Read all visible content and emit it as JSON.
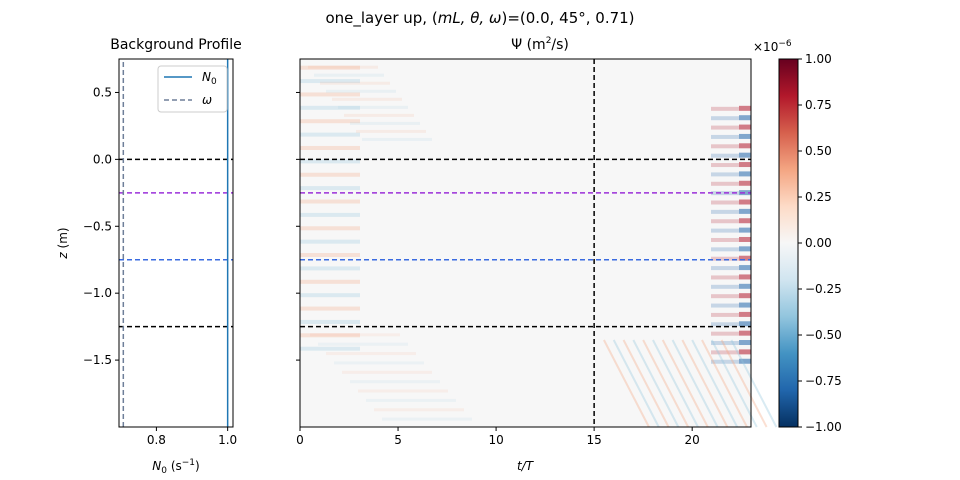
{
  "figure": {
    "suptitle_prefix": "one_layer up, (",
    "suptitle_vars": "mL, θ, ω",
    "suptitle_suffix": ")=(0.0, 45°, 0.71)"
  },
  "chart_data": [
    {
      "type": "line",
      "title": "Background Profile",
      "xlabel_main": "N",
      "xlabel_sub": "0",
      "xlabel_units": " (s",
      "xlabel_exp": "−1",
      "xlabel_close": ")",
      "ylabel_var": "z",
      "ylabel_units": " (m)",
      "xlim": [
        0.695,
        1.015
      ],
      "ylim": [
        -2.0,
        0.75
      ],
      "xticks": [
        0.8,
        1.0
      ],
      "xtick_labels": [
        "0.8",
        "1.0"
      ],
      "yticks": [
        0.5,
        0.0,
        -0.5,
        -1.0,
        -1.5
      ],
      "ytick_labels": [
        "0.5",
        "0.0",
        "−0.5",
        "−1.0",
        "−1.5"
      ],
      "series": [
        {
          "name": "N₀",
          "color": "#1f77b4",
          "style": "solid",
          "x": [
            1.0,
            1.0
          ],
          "y": [
            -2.0,
            0.75
          ]
        },
        {
          "name": "ω",
          "color": "#6e7f99",
          "style": "dashed",
          "x": [
            0.7071,
            0.7071
          ],
          "y": [
            -2.0,
            0.75
          ]
        }
      ],
      "legend": {
        "placement": "upper-right",
        "entries": [
          {
            "main": "N",
            "sub": "0",
            "color": "#1f77b4",
            "style": "solid"
          },
          {
            "main": "ω",
            "sub": "",
            "color": "#6e7f99",
            "style": "dashed"
          }
        ]
      },
      "hlines": [
        {
          "y": 0.0,
          "color": "#000000"
        },
        {
          "y": -0.25,
          "color": "#9b30d9"
        },
        {
          "y": -0.75,
          "color": "#3a6be0"
        },
        {
          "y": -1.25,
          "color": "#000000"
        }
      ]
    },
    {
      "type": "heatmap",
      "title_psi": "Ψ",
      "title_units": " (m",
      "title_exp": "2",
      "title_close": "/s)",
      "xlabel": "t/T",
      "xlim": [
        0,
        23
      ],
      "ylim": [
        -2.0,
        0.75
      ],
      "xticks": [
        0,
        5,
        10,
        15,
        20
      ],
      "xtick_labels": [
        "0",
        "5",
        "10",
        "15",
        "20"
      ],
      "colormap": "RdBu_r",
      "vlines": [
        {
          "x": 15,
          "color": "#000000"
        }
      ],
      "hlines": [
        {
          "y": 0.0,
          "color": "#000000"
        },
        {
          "y": -0.25,
          "color": "#9b30d9"
        },
        {
          "y": -0.75,
          "color": "#3a6be0"
        },
        {
          "y": -1.25,
          "color": "#000000"
        }
      ]
    },
    {
      "type": "colorbar",
      "scale_base": "×10",
      "scale_exp": "−6",
      "vmin": -1.0,
      "vmax": 1.0,
      "ticks": [
        1.0,
        0.75,
        0.5,
        0.25,
        0.0,
        -0.25,
        -0.5,
        -0.75,
        -1.0
      ],
      "tick_labels": [
        "1.00",
        "0.75",
        "0.50",
        "0.25",
        "0.00",
        "−0.25",
        "−0.50",
        "−0.75",
        "−1.00"
      ]
    }
  ]
}
